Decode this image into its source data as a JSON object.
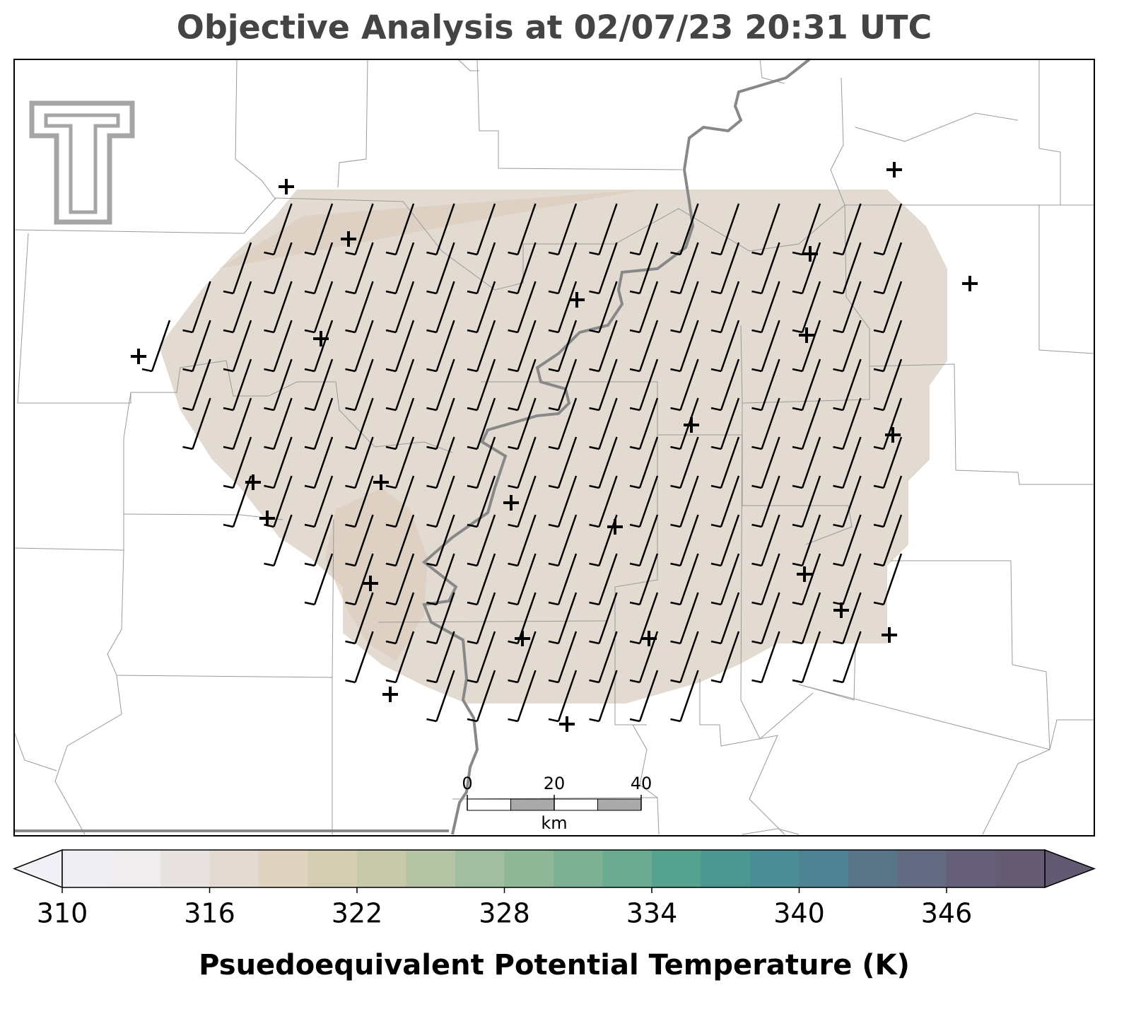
{
  "chart_data": {
    "type": "map",
    "title": "Objective Analysis at 02/07/23 20:31 UTC",
    "scale_bar": {
      "range": [
        0,
        40
      ],
      "ticks": [
        0,
        20,
        40
      ],
      "unit": "km"
    },
    "colorbar": {
      "label": "Psuedoequivalent Potential Temperature (K)",
      "range": [
        310,
        350
      ],
      "ticks": [
        310,
        316,
        322,
        328,
        334,
        340,
        346
      ],
      "colors": [
        "#efeef3",
        "#efedee",
        "#e8e3e0",
        "#e3dbd2",
        "#e0d3c0",
        "#d5ceb3",
        "#c7c9a9",
        "#b5c4a5",
        "#a2bea0",
        "#8fb899",
        "#7eb193",
        "#6aab91",
        "#55a28f",
        "#4c9890",
        "#4a8d94",
        "#4f8293",
        "#5a7488",
        "#626b82",
        "#665f7a",
        "#655c73"
      ],
      "under_color": "#f0f0f6",
      "over_color": "#625a72"
    }
  }
}
